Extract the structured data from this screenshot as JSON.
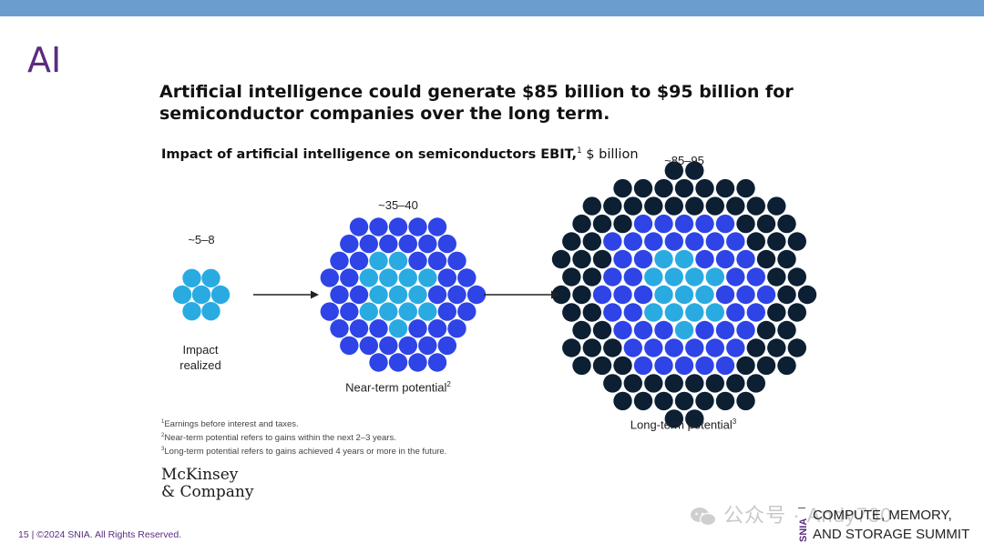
{
  "slide": {
    "title": "AI",
    "headline_line1": "Artificial intelligence could generate $85 billion to $95 billion for",
    "headline_line2": "semiconductor companies over the long term.",
    "footer": "15 | ©2024 SNIA. All Rights Reserved."
  },
  "chart": {
    "title_bold": "Impact of artificial intelligence on semiconductors EBIT,",
    "title_sup": "1",
    "title_unit": " $ billion"
  },
  "stages": [
    {
      "value": "~5–8",
      "label_line1": "Impact",
      "label_line2": "realized",
      "label_sup": "",
      "inner_dots": 7,
      "mid_dots": 0,
      "outer_dots": 0
    },
    {
      "value": "~35–40",
      "label_line1": "Near-term potential",
      "label_line2": "",
      "label_sup": "2",
      "inner_dots": 14,
      "mid_dots": 45,
      "outer_dots": 0
    },
    {
      "value": "~85–95",
      "label_line1": "Long-term potential",
      "label_line2": "",
      "label_sup": "3",
      "inner_dots": 14,
      "mid_dots": 48,
      "outer_dots": 80
    }
  ],
  "colors": {
    "inner": "#29abe2",
    "mid": "#2e44e6",
    "outer": "#0c1f33",
    "arrow": "#222222",
    "brand_purple": "#5b2b80"
  },
  "footnotes": [
    {
      "sup": "1",
      "text": "Earnings before interest and taxes."
    },
    {
      "sup": "2",
      "text": "Near-term potential refers to gains within the next 2–3 years."
    },
    {
      "sup": "3",
      "text": "Long-term potential refers to gains achieved 4 years or more in the future."
    }
  ],
  "logo": {
    "line1": "McKinsey",
    "line2": "& Company"
  },
  "watermark": {
    "icon": "wechat-icon",
    "text": "公众号 · Andy730"
  },
  "event": {
    "mark": "SNIA",
    "line1": "COMPUTE, MEMORY,",
    "line2": "AND STORAGE SUMMIT"
  }
}
